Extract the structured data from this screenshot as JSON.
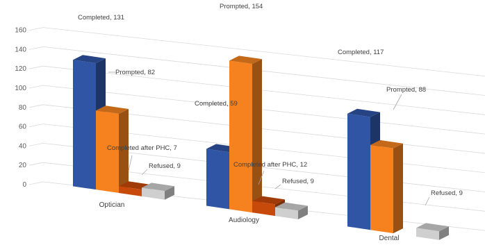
{
  "chart_data": {
    "type": "bar",
    "style": "3d-clustered-column",
    "categories": [
      "Optician",
      "Audiology",
      "Dental"
    ],
    "series": [
      {
        "name": "Completed",
        "color": "#2f55a4",
        "values": [
          131,
          59,
          117
        ]
      },
      {
        "name": "Prompted",
        "color": "#f5821f",
        "values": [
          82,
          154,
          88
        ]
      },
      {
        "name": "Completed after PHC",
        "color": "#c84a0b",
        "values": [
          7,
          12,
          null
        ]
      },
      {
        "name": "Refused",
        "color": "#cfcfcf",
        "values": [
          9,
          9,
          9
        ]
      }
    ],
    "data_labels": [
      [
        "Completed, 131",
        "Prompted, 82",
        "Completed after PHC, 7",
        "Refused, 9"
      ],
      [
        "Completed, 59",
        "Prompted, 154",
        "Completed after PHC, 12",
        "Refused, 9"
      ],
      [
        "Completed, 117",
        "Prompted, 88",
        "",
        "Refused, 9"
      ]
    ],
    "y_ticks": [
      "0",
      "20",
      "40",
      "60",
      "80",
      "100",
      "120",
      "140",
      "160"
    ],
    "ylim": [
      0,
      160
    ],
    "grid": true,
    "legend": "none"
  }
}
